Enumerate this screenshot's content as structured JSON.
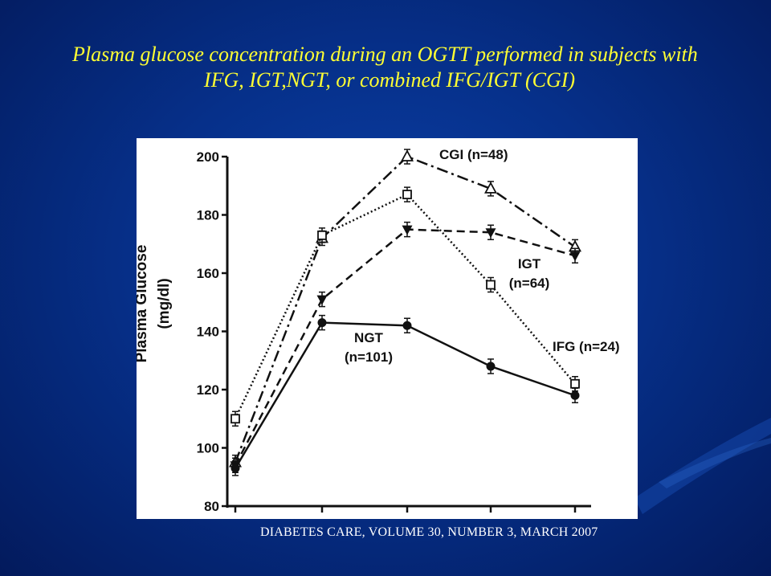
{
  "slide": {
    "title_line1": "Plasma glucose concentration during an OGTT performed in subjects with",
    "title_line2": "IFG, IGT,NGT, or combined IFG/IGT (CGI)",
    "source": "DIABETES CARE, VOLUME 30, NUMBER 3, MARCH 2007",
    "title_color": "#ffff33"
  },
  "chart_data": {
    "type": "line",
    "title": "",
    "xlabel": "",
    "ylabel": "Plasma Glucose",
    "ylabel_unit": "(mg/dl)",
    "ylim": [
      80,
      200
    ],
    "yticks": [
      "80",
      "100",
      "120",
      "140",
      "160",
      "180",
      "200"
    ],
    "x": [
      0,
      30,
      60,
      90,
      120
    ],
    "grid": false,
    "series": [
      {
        "name": "CGI (n=48)",
        "values": [
          95,
          172,
          200,
          189,
          169
        ],
        "marker": "open-triangle",
        "style": "dash-dot",
        "label_line1": "CGI (n=48)",
        "label_line2": ""
      },
      {
        "name": "IGT (n=64)",
        "values": [
          110,
          173,
          187,
          156,
          122
        ],
        "marker": "open-square",
        "style": "dotted",
        "label_line1": "IGT",
        "label_line2": "(n=64)"
      },
      {
        "name": "IFG (n=24)",
        "values": [
          94,
          151,
          175,
          174,
          166
        ],
        "marker": "filled-triangle",
        "style": "dashed",
        "label_line1": "IFG (n=24)",
        "label_line2": ""
      },
      {
        "name": "NGT (n=101)",
        "values": [
          93,
          143,
          142,
          128,
          118
        ],
        "marker": "filled-circle",
        "style": "solid",
        "label_line1": "NGT",
        "label_line2": "(n=101)"
      }
    ]
  }
}
